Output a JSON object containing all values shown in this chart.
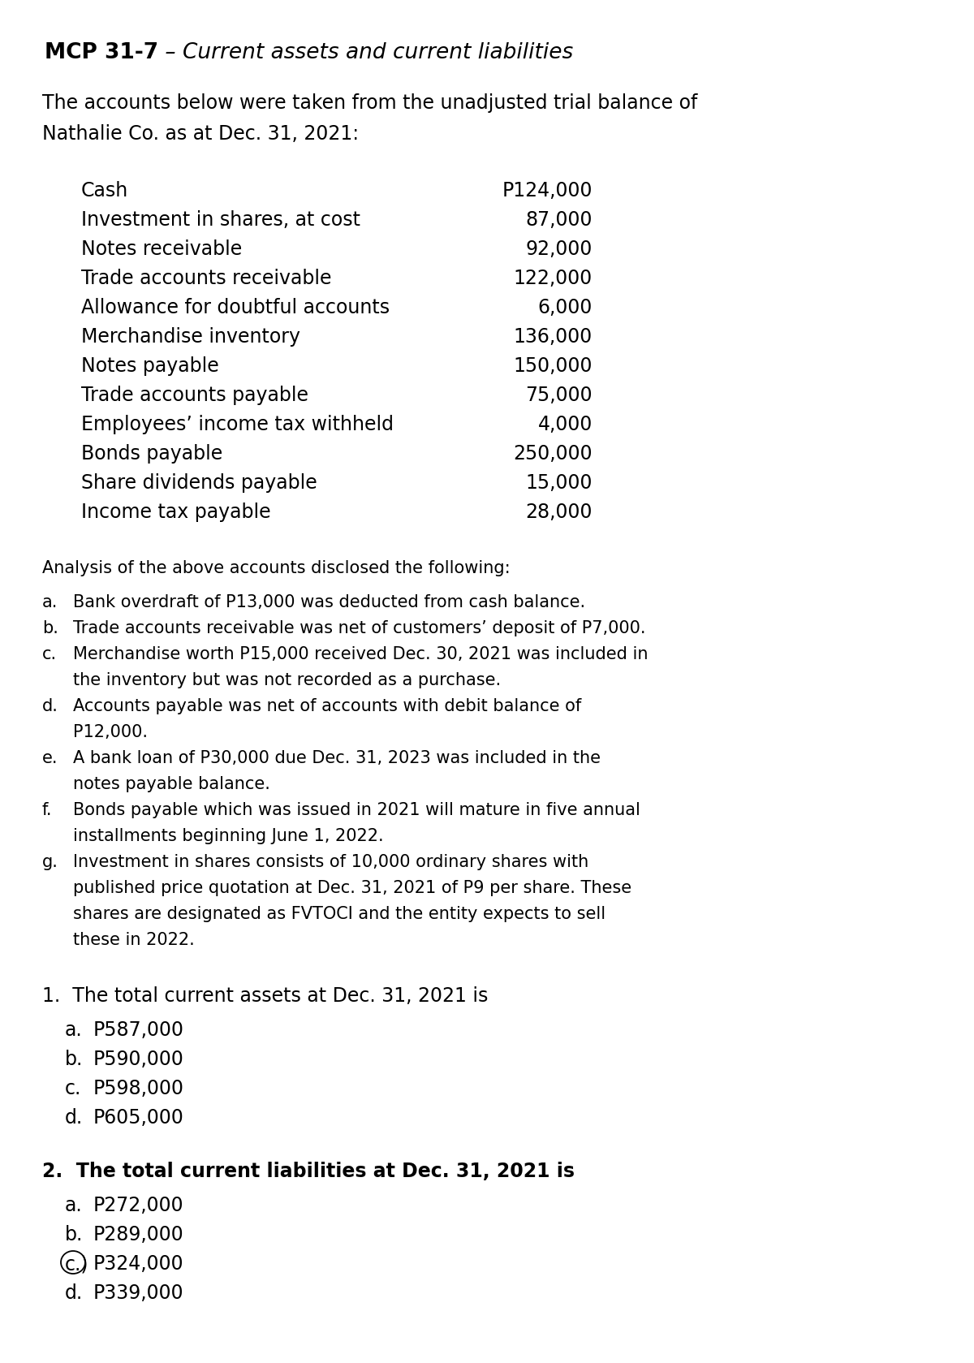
{
  "bg_color": "#ffffff",
  "title_bold": "MCP 31-7",
  "title_italic": " – Current assets and current liabilities",
  "intro_line1": "The accounts below were taken from the unadjusted trial balance of",
  "intro_line2": "Nathalie Co. as at Dec. 31, 2021:",
  "accounts": [
    [
      "Cash",
      "P124,000"
    ],
    [
      "Investment in shares, at cost",
      "87,000"
    ],
    [
      "Notes receivable",
      "92,000"
    ],
    [
      "Trade accounts receivable",
      "122,000"
    ],
    [
      "Allowance for doubtful accounts",
      "6,000"
    ],
    [
      "Merchandise inventory",
      "136,000"
    ],
    [
      "Notes payable",
      "150,000"
    ],
    [
      "Trade accounts payable",
      "75,000"
    ],
    [
      "Employees’ income tax withheld",
      "4,000"
    ],
    [
      "Bonds payable",
      "250,000"
    ],
    [
      "Share dividends payable",
      "15,000"
    ],
    [
      "Income tax payable",
      "28,000"
    ]
  ],
  "analysis_header": "Analysis of the above accounts disclosed the following:",
  "analysis_items": [
    {
      "letter": "a.",
      "lines": [
        "Bank overdraft of P13,000 was deducted from cash balance."
      ]
    },
    {
      "letter": "b.",
      "lines": [
        "Trade accounts receivable was net of customers’ deposit of P7,000."
      ]
    },
    {
      "letter": "c.",
      "lines": [
        "Merchandise worth P15,000 received Dec. 30, 2021 was included in",
        "the inventory but was not recorded as a purchase."
      ]
    },
    {
      "letter": "d.",
      "lines": [
        "Accounts payable was net of accounts with debit balance of",
        "P12,000."
      ]
    },
    {
      "letter": "e.",
      "lines": [
        "A bank loan of P30,000 due Dec. 31, 2023 was included in the",
        "notes payable balance."
      ]
    },
    {
      "letter": "f.",
      "lines": [
        "Bonds payable which was issued in 2021 will mature in five annual",
        "installments beginning June 1, 2022."
      ]
    },
    {
      "letter": "g.",
      "lines": [
        "Investment in shares consists of 10,000 ordinary shares with",
        "published price quotation at Dec. 31, 2021 of P9 per share. These",
        "shares are designated as FVTOCI and the entity expects to sell",
        "these in 2022."
      ]
    }
  ],
  "q1_text": "1.  The total current assets at Dec. 31, 2021 is",
  "q1_options": [
    [
      "a.",
      "P587,000",
      false
    ],
    [
      "b.",
      "P590,000",
      false
    ],
    [
      "c.",
      "P598,000",
      false
    ],
    [
      "d.",
      "P605,000",
      false
    ]
  ],
  "q2_text": "2.  The total current liabilities at Dec. 31, 2021 is",
  "q2_options": [
    [
      "a.",
      "P272,000",
      false
    ],
    [
      "b.",
      "P289,000",
      false
    ],
    [
      "c.)",
      "P324,000",
      true
    ],
    [
      "d.",
      "P339,000",
      false
    ]
  ]
}
